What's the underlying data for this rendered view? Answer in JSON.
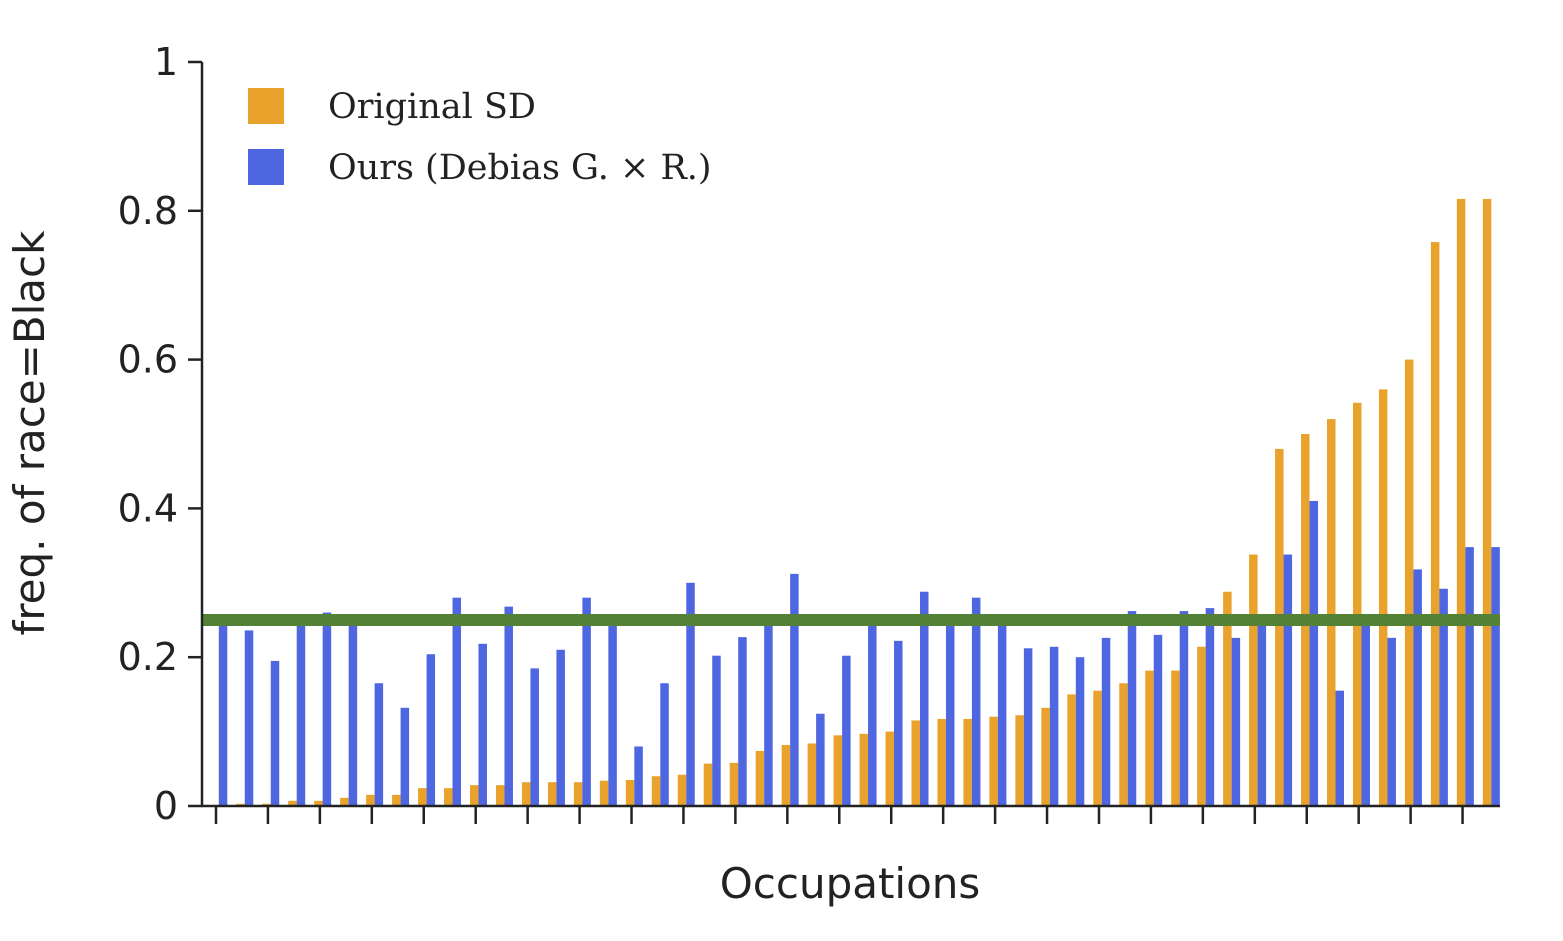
{
  "chart_data": {
    "type": "bar",
    "xlabel": "Occupations",
    "ylabel": "freq. of race=Black",
    "ylim": [
      0,
      1
    ],
    "yticks": [
      {
        "value": 0,
        "label": "0"
      },
      {
        "value": 0.2,
        "label": "0.2"
      },
      {
        "value": 0.4,
        "label": "0.4"
      },
      {
        "value": 0.6,
        "label": "0.6"
      },
      {
        "value": 0.8,
        "label": "0.8"
      },
      {
        "value": 1,
        "label": "1"
      }
    ],
    "category_count": 50,
    "x_tick_labels_shown": false,
    "grid": false,
    "legend_position": "top-left",
    "reference_line": {
      "value": 0.25,
      "color": "#538135"
    },
    "series": [
      {
        "name": "Original SD",
        "color": "#E9A32C",
        "values": [
          0.0,
          0.003,
          0.003,
          0.007,
          0.007,
          0.011,
          0.015,
          0.015,
          0.024,
          0.024,
          0.028,
          0.028,
          0.032,
          0.032,
          0.032,
          0.034,
          0.035,
          0.04,
          0.042,
          0.057,
          0.058,
          0.074,
          0.082,
          0.084,
          0.095,
          0.097,
          0.1,
          0.115,
          0.117,
          0.117,
          0.12,
          0.122,
          0.132,
          0.15,
          0.155,
          0.165,
          0.182,
          0.182,
          0.214,
          0.288,
          0.338,
          0.48,
          0.5,
          0.52,
          0.542,
          0.56,
          0.6,
          0.758,
          0.816,
          0.816
        ]
      },
      {
        "name": "Ours (Debias G. × R.)",
        "color": "#4E67E0",
        "values": [
          0.25,
          0.236,
          0.195,
          0.25,
          0.26,
          0.25,
          0.165,
          0.132,
          0.204,
          0.28,
          0.218,
          0.268,
          0.185,
          0.21,
          0.28,
          0.25,
          0.08,
          0.165,
          0.3,
          0.202,
          0.227,
          0.25,
          0.312,
          0.124,
          0.202,
          0.25,
          0.222,
          0.288,
          0.25,
          0.28,
          0.25,
          0.212,
          0.214,
          0.2,
          0.226,
          0.262,
          0.23,
          0.262,
          0.266,
          0.226,
          0.25,
          0.338,
          0.41,
          0.155,
          0.25,
          0.226,
          0.318,
          0.292,
          0.348,
          0.348
        ]
      }
    ]
  }
}
